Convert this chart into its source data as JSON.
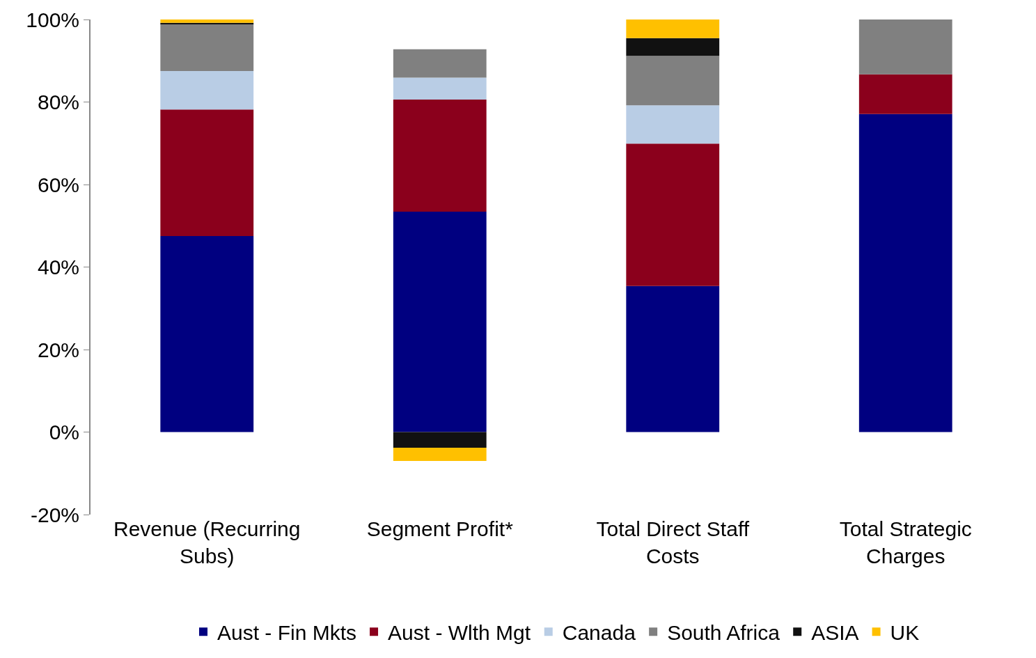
{
  "chart_data": {
    "type": "bar",
    "stacked": true,
    "categories": [
      "Revenue (Recurring Subs)",
      "Segment Profit*",
      "Total Direct Staff Costs",
      "Total Strategic Charges"
    ],
    "series": [
      {
        "name": "Aust - Fin Mkts",
        "color": "#000080",
        "values": [
          47.5,
          53.4,
          35.4,
          77.1
        ]
      },
      {
        "name": "Aust - Wlth Mgt",
        "color": "#8b001c",
        "values": [
          30.7,
          27.2,
          34.5,
          9.6
        ]
      },
      {
        "name": "Canada",
        "color": "#b9cde5",
        "values": [
          9.3,
          5.3,
          9.3,
          0
        ]
      },
      {
        "name": "South Africa",
        "color": "#808080",
        "values": [
          11.4,
          6.9,
          12.0,
          13.3
        ]
      },
      {
        "name": "ASIA",
        "color": "#111111",
        "values": [
          0.3,
          -3.8,
          4.3,
          0
        ]
      },
      {
        "name": "UK",
        "color": "#ffc000",
        "values": [
          0.8,
          -3.2,
          4.5,
          0
        ]
      }
    ],
    "ylim": [
      -20,
      100
    ],
    "yticks": [
      {
        "value": -20,
        "label": "-20%"
      },
      {
        "value": 0,
        "label": "0%"
      },
      {
        "value": 20,
        "label": "20%"
      },
      {
        "value": 40,
        "label": "40%"
      },
      {
        "value": 60,
        "label": "60%"
      },
      {
        "value": 80,
        "label": "80%"
      },
      {
        "value": 100,
        "label": "100%"
      }
    ],
    "grid": false,
    "legend": "bottom"
  }
}
